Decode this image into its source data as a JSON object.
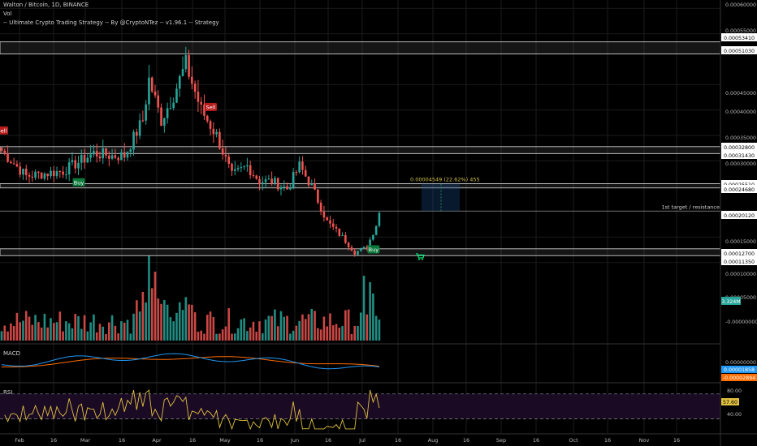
{
  "header": {
    "symbol_line": "Walton / Bitcoin, 1D, BINANCE",
    "vol_label": "Vol",
    "strategy_line": "-- Ultimate Crypto Trading Strategy -- By @CryptoNTez -- v1.96.1 -- Strategy"
  },
  "colors": {
    "background": "#000000",
    "up": "#26a69a",
    "down": "#ef5350",
    "grid": "#1b1b1b",
    "zone": "#b8b8b8",
    "macd_line": "#2196f3",
    "signal_line": "#ff6d00",
    "rsi_line": "#e0c040",
    "rsi_band": "#1a0a24",
    "buy_tag": "#0b7a3c",
    "sell_tag": "#b71c1c",
    "target_text": "#d4c24a"
  },
  "price_axis_labels": [
    {
      "text": "0.00060000",
      "type": "tick"
    },
    {
      "text": "0.00055000",
      "type": "tick"
    },
    {
      "text": "0.00053410",
      "type": "zone"
    },
    {
      "text": "0.00051030",
      "type": "zone"
    },
    {
      "text": "0.00045000",
      "type": "tick"
    },
    {
      "text": "0.00040000",
      "type": "tick"
    },
    {
      "text": "0.00035000",
      "type": "tick"
    },
    {
      "text": "0.00032800",
      "type": "zone"
    },
    {
      "text": "0.00031430",
      "type": "zone"
    },
    {
      "text": "0.00030000",
      "type": "tick"
    },
    {
      "text": "0.00025510",
      "type": "zone"
    },
    {
      "text": "0.00024680",
      "type": "zone"
    },
    {
      "text": "0.00020120",
      "type": "zone"
    },
    {
      "text": "0.00015000",
      "type": "tick"
    },
    {
      "text": "0.00012700",
      "type": "zone"
    },
    {
      "text": "0.00011350",
      "type": "zone"
    },
    {
      "text": "0.00010000",
      "type": "tick"
    },
    {
      "text": "0.00005000",
      "type": "tick"
    },
    {
      "text": "3.324M",
      "type": "vol"
    },
    {
      "text": "-0.00000000",
      "type": "tick"
    }
  ],
  "time_axis_labels": [
    "Feb",
    "16",
    "Mar",
    "16",
    "Apr",
    "16",
    "May",
    "16",
    "Jun",
    "16",
    "Jul",
    "16",
    "Aug",
    "16",
    "Sep",
    "16",
    "Oct",
    "16",
    "Nov",
    "16"
  ],
  "annotations": {
    "target_text": "0.00004549 (22.62%) 455",
    "resistance_text": "1st target / resistance",
    "buy_label": "Buy",
    "sell_label": "Sell"
  },
  "indicators": {
    "macd_label": "MACD",
    "macd_values": [
      "0.00000000",
      "0.00001858",
      "-0.00002894"
    ],
    "rsi_label": "RSI",
    "rsi_values": [
      "80.00",
      "57.60",
      "40.00"
    ]
  },
  "chart_data": {
    "type": "candlestick",
    "symbol": "WTCBTC",
    "interval": "1D",
    "exchange": "BINANCE",
    "zones": [
      {
        "low": 0.0005103,
        "high": 0.0005341
      },
      {
        "low": 0.0003143,
        "high": 0.000328
      },
      {
        "low": 0.0002468,
        "high": 0.0002551
      },
      {
        "low": 0.0001135,
        "high": 0.000127
      }
    ],
    "resistance_line": 0.0002012,
    "target_change": {
      "value": 4.549e-05,
      "percent": 22.62
    },
    "last_price_approx": 0.000198,
    "close_anchors": [
      {
        "day": 0,
        "close": 0.00032
      },
      {
        "day": 8,
        "close": 0.00027
      },
      {
        "day": 20,
        "close": 0.00028
      },
      {
        "day": 30,
        "close": 0.000315
      },
      {
        "day": 36,
        "close": 0.00031
      },
      {
        "day": 40,
        "close": 0.00031
      },
      {
        "day": 46,
        "close": 0.00038
      },
      {
        "day": 48,
        "close": 0.00046
      },
      {
        "day": 50,
        "close": 0.00042
      },
      {
        "day": 52,
        "close": 0.00038
      },
      {
        "day": 56,
        "close": 0.00043
      },
      {
        "day": 60,
        "close": 0.00049
      },
      {
        "day": 65,
        "close": 0.0004
      },
      {
        "day": 70,
        "close": 0.00035
      },
      {
        "day": 75,
        "close": 0.00027
      },
      {
        "day": 80,
        "close": 0.00029
      },
      {
        "day": 84,
        "close": 0.00026
      },
      {
        "day": 88,
        "close": 0.00026
      },
      {
        "day": 93,
        "close": 0.000245
      },
      {
        "day": 97,
        "close": 0.00029
      },
      {
        "day": 101,
        "close": 0.00025
      },
      {
        "day": 106,
        "close": 0.00018
      },
      {
        "day": 111,
        "close": 0.00015
      },
      {
        "day": 115,
        "close": 0.00012
      },
      {
        "day": 119,
        "close": 0.00013
      },
      {
        "day": 123,
        "close": 0.00019
      }
    ],
    "signals": [
      {
        "type": "Sell",
        "day": 0
      },
      {
        "type": "Buy",
        "day": 25
      },
      {
        "type": "Sell",
        "day": 68
      },
      {
        "type": "Buy",
        "day": 121
      }
    ],
    "volume_last": "3.324M",
    "macd": {
      "macd": 1.858e-05,
      "signal": -2.894e-05
    },
    "rsi": {
      "value": 57.6,
      "upper": 80,
      "lower": 40
    }
  }
}
